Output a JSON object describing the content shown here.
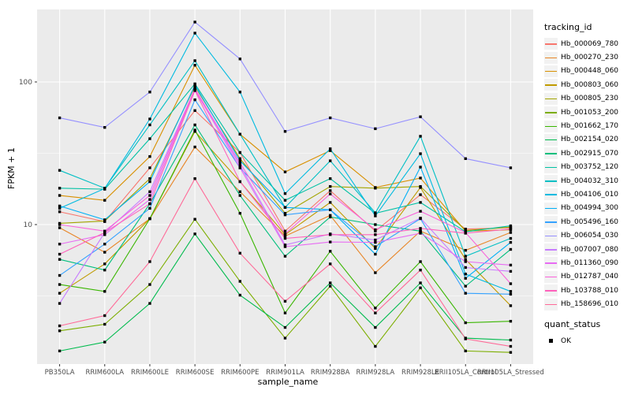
{
  "chart": {
    "y_axis_label": "FPKM + 1",
    "x_axis_label": "sample_name",
    "legend_title": "tracking_id",
    "quant_legend_title": "quant_status",
    "quant_ok_label": "OK"
  },
  "chart_data": {
    "type": "line",
    "title": "",
    "xlabel": "sample_name",
    "ylabel": "FPKM + 1",
    "y_scale": "log10",
    "y_tick_values": [
      10,
      100
    ],
    "y_minor_grid_values": [
      3.1623,
      31.623
    ],
    "ylim_approx": [
      1.1,
      320
    ],
    "legend_position": "right",
    "panel_background": "#EBEBEB",
    "grid_color": "#FFFFFF",
    "tick_label_color": "#4D4D4D",
    "point_shape": "filled-black-square",
    "quant_status_all": "OK",
    "categories": [
      "PB350LA",
      "RRIM600LA",
      "RRIM600LE",
      "RRIM600SE",
      "RRIM600PE",
      "RRIM901LA",
      "RRIM928BA",
      "RRIM928LA",
      "RRIM928LE",
      "RRII105LA_Control",
      "RRII105LA_Stressed"
    ],
    "series": [
      {
        "name": "Hb_000069_780",
        "color": "#F8766D",
        "values": [
          12.3,
          10.5,
          25,
          63,
          32,
          9.0,
          17.3,
          9.0,
          16.2,
          9.3,
          9.5
        ]
      },
      {
        "name": "Hb_000270_230",
        "color": "#E88526",
        "values": [
          9.5,
          6.4,
          11,
          35,
          17,
          8.3,
          11.6,
          4.6,
          9.0,
          6.6,
          8.8
        ]
      },
      {
        "name": "Hb_000448_060",
        "color": "#D89000",
        "values": [
          16,
          14.8,
          30,
          131,
          43,
          23.4,
          33,
          18.2,
          21.2,
          9.0,
          9.2
        ]
      },
      {
        "name": "Hb_000803_060",
        "color": "#C09B00",
        "values": [
          3.3,
          5.3,
          11,
          45,
          20,
          8.5,
          14.3,
          6.8,
          18.2,
          5.7,
          2.7
        ]
      },
      {
        "name": "Hb_000805_230",
        "color": "#A3A500",
        "values": [
          10.2,
          10.6,
          21,
          93,
          29,
          12,
          18.5,
          18,
          18.5,
          9.1,
          9.6
        ]
      },
      {
        "name": "Hb_001053_200",
        "color": "#7CAE00",
        "values": [
          1.8,
          2.0,
          3.8,
          10.9,
          4.0,
          1.6,
          3.7,
          1.4,
          3.6,
          1.3,
          1.27
        ]
      },
      {
        "name": "Hb_001662_170",
        "color": "#39B600",
        "values": [
          3.8,
          3.4,
          11,
          46,
          12,
          2.4,
          6.5,
          2.6,
          5.5,
          2.05,
          2.1
        ]
      },
      {
        "name": "Hb_002154_020",
        "color": "#00BB4E",
        "values": [
          1.3,
          1.5,
          2.8,
          8.6,
          3.2,
          1.9,
          3.9,
          1.9,
          3.9,
          1.6,
          1.55
        ]
      },
      {
        "name": "Hb_002915_070",
        "color": "#00BF7D",
        "values": [
          5.7,
          4.8,
          14,
          50,
          16,
          6.0,
          11.3,
          10,
          9.0,
          3.7,
          6.7
        ]
      },
      {
        "name": "Hb_003752_120",
        "color": "#00C1A3",
        "values": [
          18,
          17.7,
          40,
          97,
          32,
          14.8,
          21,
          12,
          14.3,
          8.9,
          9.8
        ]
      },
      {
        "name": "Hb_004032_310",
        "color": "#00BFC4",
        "values": [
          24,
          18,
          50,
          141,
          43,
          13.2,
          28,
          12.1,
          41.6,
          6.0,
          8.0
        ]
      },
      {
        "name": "Hb_004106_010",
        "color": "#00BAE0",
        "values": [
          13,
          17.9,
          55,
          220,
          85,
          16.5,
          34,
          11.5,
          31.4,
          4.5,
          3.4
        ]
      },
      {
        "name": "Hb_004994_300",
        "color": "#00B0F6",
        "values": [
          13.5,
          10.8,
          20,
          95,
          28,
          13.2,
          12.7,
          6.2,
          25.3,
          4.2,
          7.5
        ]
      },
      {
        "name": "Hb_005496_160",
        "color": "#35A2FF",
        "values": [
          4.4,
          7.3,
          13,
          75,
          25,
          11.7,
          12.7,
          7.0,
          11.0,
          3.3,
          3.25
        ]
      },
      {
        "name": "Hb_006054_030",
        "color": "#9590FF",
        "values": [
          56,
          48,
          85,
          263,
          145,
          45,
          56,
          47,
          57,
          29,
          25
        ]
      },
      {
        "name": "Hb_007007_080",
        "color": "#C77CFF",
        "values": [
          2.8,
          8.8,
          17,
          90,
          26,
          7.2,
          8.6,
          7.8,
          11.1,
          5.0,
          4.7
        ]
      },
      {
        "name": "Hb_011360_090",
        "color": "#E76BF3",
        "values": [
          7.3,
          8.5,
          15,
          88,
          25,
          7.0,
          7.55,
          7.5,
          8.7,
          5.5,
          5.2
        ]
      },
      {
        "name": "Hb_012787_040",
        "color": "#FA62DB",
        "values": [
          10,
          9.0,
          16,
          89,
          27,
          8.6,
          16.4,
          9.2,
          12.4,
          8.8,
          3.85
        ]
      },
      {
        "name": "Hb_103788_010",
        "color": "#FF62BC",
        "values": [
          6.2,
          8.8,
          14,
          87,
          20,
          8.0,
          8.5,
          8.5,
          9.4,
          8.7,
          9.3
        ]
      },
      {
        "name": "Hb_158696_010",
        "color": "#FF6A98",
        "values": [
          1.95,
          2.3,
          5.5,
          21,
          6.3,
          2.9,
          5.3,
          2.4,
          4.8,
          1.58,
          1.4
        ]
      }
    ]
  }
}
